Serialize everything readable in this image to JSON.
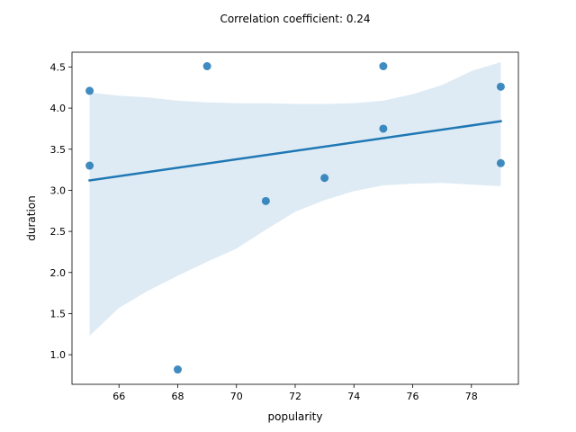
{
  "chart_data": {
    "type": "scatter",
    "title": "Correlation coefficient: 0.24",
    "xlabel": "popularity",
    "ylabel": "duration",
    "xlim": [
      64.4,
      79.6
    ],
    "ylim": [
      0.64,
      4.68
    ],
    "x_ticks": [
      66,
      68,
      70,
      72,
      74,
      76,
      78
    ],
    "x_tick_labels": [
      "66",
      "68",
      "70",
      "72",
      "74",
      "76",
      "78"
    ],
    "y_ticks": [
      1.0,
      1.5,
      2.0,
      2.5,
      3.0,
      3.5,
      4.0,
      4.5
    ],
    "y_tick_labels": [
      "1.0",
      "1.5",
      "2.0",
      "2.5",
      "3.0",
      "3.5",
      "4.0",
      "4.5"
    ],
    "points": [
      {
        "x": 65,
        "y": 4.21
      },
      {
        "x": 65,
        "y": 3.3
      },
      {
        "x": 68,
        "y": 0.82
      },
      {
        "x": 69,
        "y": 4.51
      },
      {
        "x": 71,
        "y": 2.87
      },
      {
        "x": 73,
        "y": 3.15
      },
      {
        "x": 75,
        "y": 4.51
      },
      {
        "x": 75,
        "y": 3.75
      },
      {
        "x": 79,
        "y": 4.26
      },
      {
        "x": 79,
        "y": 3.33
      }
    ],
    "regression_line": {
      "x": [
        65,
        79
      ],
      "y": [
        3.12,
        3.84
      ]
    },
    "confidence_band": {
      "x": [
        65,
        66,
        67,
        68,
        69,
        70,
        71,
        72,
        73,
        74,
        75,
        76,
        77,
        78,
        79
      ],
      "upper": [
        4.19,
        4.15,
        4.13,
        4.09,
        4.07,
        4.06,
        4.06,
        4.05,
        4.05,
        4.06,
        4.09,
        4.17,
        4.28,
        4.45,
        4.56
      ],
      "lower": [
        1.23,
        1.57,
        1.78,
        1.96,
        2.13,
        2.29,
        2.52,
        2.74,
        2.88,
        2.99,
        3.06,
        3.08,
        3.09,
        3.07,
        3.05
      ]
    },
    "grid": false,
    "colors": {
      "points": "#1f77b4",
      "line": "#1f77b4",
      "band": "#1f77b4"
    }
  }
}
